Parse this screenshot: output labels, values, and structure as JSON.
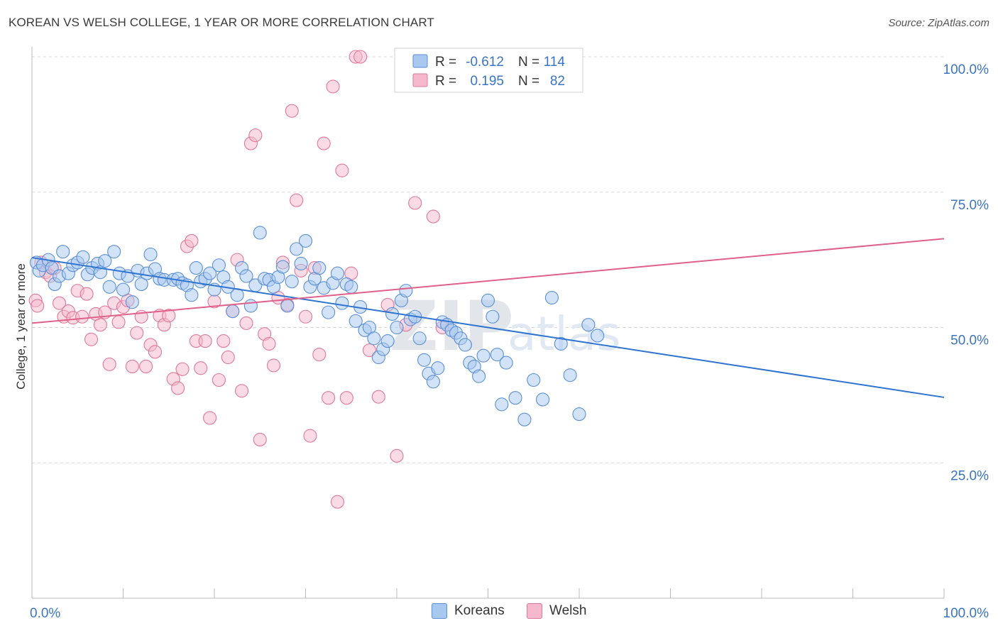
{
  "title": "KOREAN VS WELSH COLLEGE, 1 YEAR OR MORE CORRELATION CHART",
  "source": "Source: ZipAtlas.com",
  "watermark": {
    "zip": "ZIP",
    "atlas": "atlas"
  },
  "colors": {
    "koreans_fill": "#a8c8f0",
    "koreans_stroke": "#5b8fd6",
    "koreans_line": "#2e74d0",
    "welsh_fill": "#f5b8cc",
    "welsh_stroke": "#e07898",
    "welsh_line": "#e0608a",
    "value_text": "#3a74c4",
    "grid": "#d8d8d8"
  },
  "stats_legend": [
    {
      "r_label": "R =",
      "r_value": "-0.612",
      "n_label": "N =",
      "n_value": "114"
    },
    {
      "r_label": "R =",
      "r_value": "0.195",
      "n_label": "N =",
      "n_value": "82"
    }
  ],
  "chart_data": {
    "type": "scatter",
    "title": "KOREAN VS WELSH COLLEGE, 1 YEAR OR MORE CORRELATION CHART",
    "xlabel": "",
    "ylabel": "College, 1 year or more",
    "xlim": [
      0,
      100
    ],
    "ylim": [
      0,
      100
    ],
    "x_tick_labels": [
      "0.0%",
      "100.0%"
    ],
    "y_ticks": [
      25,
      50,
      75,
      100
    ],
    "y_tick_labels": [
      "25.0%",
      "50.0%",
      "75.0%",
      "100.0%"
    ],
    "grid": true,
    "legend": "bottom-center",
    "series": [
      {
        "name": "Koreans",
        "R": -0.612,
        "N": 114,
        "trend": {
          "x": [
            0,
            100
          ],
          "y": [
            62.9,
            37.1
          ]
        },
        "points": [
          [
            0.5,
            62
          ],
          [
            0.8,
            60.5
          ],
          [
            1.2,
            61.5
          ],
          [
            1.8,
            62.5
          ],
          [
            2.2,
            61
          ],
          [
            2.5,
            58
          ],
          [
            3,
            59.5
          ],
          [
            3.4,
            64
          ],
          [
            4,
            60
          ],
          [
            4.5,
            61.5
          ],
          [
            5,
            62
          ],
          [
            5.6,
            63
          ],
          [
            6.1,
            59.8
          ],
          [
            6.6,
            61
          ],
          [
            7.2,
            61.8
          ],
          [
            7.5,
            60.2
          ],
          [
            8,
            62.3
          ],
          [
            8.5,
            57.5
          ],
          [
            9,
            64
          ],
          [
            9.6,
            60
          ],
          [
            10,
            57
          ],
          [
            10.5,
            59.5
          ],
          [
            11,
            54.7
          ],
          [
            11.6,
            60.5
          ],
          [
            12,
            58
          ],
          [
            12.6,
            60
          ],
          [
            13,
            63.5
          ],
          [
            13.5,
            60.8
          ],
          [
            14,
            59
          ],
          [
            14.5,
            58.8
          ],
          [
            15.5,
            58.8
          ],
          [
            16,
            59
          ],
          [
            16.5,
            58.2
          ],
          [
            17,
            57.8
          ],
          [
            17.5,
            56
          ],
          [
            18,
            61
          ],
          [
            18.5,
            58.5
          ],
          [
            19,
            59
          ],
          [
            19.5,
            60
          ],
          [
            20,
            57
          ],
          [
            20.5,
            61.5
          ],
          [
            21,
            59.3
          ],
          [
            21.5,
            57.5
          ],
          [
            22,
            53
          ],
          [
            22.5,
            56
          ],
          [
            23,
            61
          ],
          [
            23.5,
            59.5
          ],
          [
            24,
            54
          ],
          [
            24.5,
            57.8
          ],
          [
            25,
            67.5
          ],
          [
            25.5,
            59
          ],
          [
            26,
            58.8
          ],
          [
            26.5,
            57.5
          ],
          [
            27,
            59.3
          ],
          [
            27.5,
            61.2
          ],
          [
            28,
            54
          ],
          [
            28.5,
            58.5
          ],
          [
            29,
            64.5
          ],
          [
            29.5,
            61.8
          ],
          [
            30,
            66
          ],
          [
            30.5,
            57.5
          ],
          [
            31,
            59
          ],
          [
            31.5,
            61
          ],
          [
            32,
            57.3
          ],
          [
            32.5,
            52.8
          ],
          [
            33,
            58.2
          ],
          [
            33.5,
            60
          ],
          [
            34,
            54.5
          ],
          [
            34.5,
            58
          ],
          [
            35,
            57.5
          ],
          [
            35.5,
            51.2
          ],
          [
            36,
            53.8
          ],
          [
            36.5,
            49.5
          ],
          [
            37,
            50
          ],
          [
            37.5,
            48
          ],
          [
            38,
            44.5
          ],
          [
            38.5,
            46
          ],
          [
            39,
            47.5
          ],
          [
            39.5,
            52.5
          ],
          [
            40,
            50
          ],
          [
            40.5,
            55
          ],
          [
            41,
            56.8
          ],
          [
            41.5,
            51.5
          ],
          [
            42,
            52
          ],
          [
            42.5,
            48
          ],
          [
            43,
            44
          ],
          [
            43.5,
            41.5
          ],
          [
            44,
            40
          ],
          [
            44.5,
            42.5
          ],
          [
            45,
            51
          ],
          [
            45.5,
            50.5
          ],
          [
            46,
            49.5
          ],
          [
            46.5,
            49
          ],
          [
            47,
            48
          ],
          [
            47.5,
            46.8
          ],
          [
            48,
            43.5
          ],
          [
            48.5,
            42.8
          ],
          [
            49,
            41
          ],
          [
            49.5,
            44.8
          ],
          [
            50,
            55
          ],
          [
            50.5,
            52
          ],
          [
            51,
            45
          ],
          [
            51.5,
            35.8
          ],
          [
            52,
            43.5
          ],
          [
            53,
            37
          ],
          [
            54,
            33
          ],
          [
            55,
            40.3
          ],
          [
            56,
            36.7
          ],
          [
            57,
            55.5
          ],
          [
            58,
            47
          ],
          [
            59,
            41.2
          ],
          [
            60,
            34
          ],
          [
            61,
            50.5
          ],
          [
            62,
            48.5
          ]
        ]
      },
      {
        "name": "Welsh",
        "R": 0.195,
        "N": 82,
        "trend": {
          "x": [
            0,
            100
          ],
          "y": [
            50.8,
            66.4
          ]
        },
        "points": [
          [
            0.4,
            55
          ],
          [
            0.6,
            54
          ],
          [
            1,
            62
          ],
          [
            1.5,
            60.2
          ],
          [
            2,
            59.5
          ],
          [
            2.5,
            61
          ],
          [
            3,
            54.5
          ],
          [
            3.5,
            52
          ],
          [
            4,
            53
          ],
          [
            4.5,
            51.8
          ],
          [
            5,
            56.8
          ],
          [
            5.5,
            52
          ],
          [
            6,
            56.2
          ],
          [
            6.5,
            47.8
          ],
          [
            7,
            52.5
          ],
          [
            7.5,
            50.5
          ],
          [
            8,
            52.8
          ],
          [
            8.5,
            43.2
          ],
          [
            9,
            54.5
          ],
          [
            9.5,
            51
          ],
          [
            10,
            53.8
          ],
          [
            10.5,
            55
          ],
          [
            11,
            42.8
          ],
          [
            11.5,
            49
          ],
          [
            12,
            52
          ],
          [
            12.5,
            42.8
          ],
          [
            13,
            46.8
          ],
          [
            13.5,
            45.5
          ],
          [
            14,
            52.2
          ],
          [
            14.5,
            50.5
          ],
          [
            15,
            52.2
          ],
          [
            15.5,
            40.5
          ],
          [
            16,
            38.8
          ],
          [
            16.5,
            42.3
          ],
          [
            17,
            65
          ],
          [
            17.5,
            66
          ],
          [
            18,
            47.5
          ],
          [
            18.5,
            42.5
          ],
          [
            19,
            47.5
          ],
          [
            19.5,
            33.3
          ],
          [
            20,
            54.8
          ],
          [
            20.5,
            40.3
          ],
          [
            21,
            47.5
          ],
          [
            21.5,
            44.5
          ],
          [
            22,
            53
          ],
          [
            22.5,
            62.5
          ],
          [
            23,
            38.3
          ],
          [
            23.5,
            50.8
          ],
          [
            24,
            84
          ],
          [
            24.5,
            85.5
          ],
          [
            25,
            29.3
          ],
          [
            25.5,
            48.8
          ],
          [
            26,
            47
          ],
          [
            26.5,
            43
          ],
          [
            27,
            55.5
          ],
          [
            27.5,
            62
          ],
          [
            28,
            54.2
          ],
          [
            28.5,
            90
          ],
          [
            29,
            73.5
          ],
          [
            29.5,
            60.5
          ],
          [
            30,
            52
          ],
          [
            30.5,
            30
          ],
          [
            31,
            61
          ],
          [
            31.5,
            45
          ],
          [
            32,
            84
          ],
          [
            32.5,
            37
          ],
          [
            33,
            94.5
          ],
          [
            33.5,
            17.8
          ],
          [
            34,
            79
          ],
          [
            34.5,
            37
          ],
          [
            35,
            60
          ],
          [
            35.5,
            100
          ],
          [
            36,
            100
          ],
          [
            37,
            45.8
          ],
          [
            38,
            37.2
          ],
          [
            39,
            54.2
          ],
          [
            40,
            26.3
          ],
          [
            41,
            50.5
          ],
          [
            42,
            73
          ],
          [
            43,
            95.5
          ],
          [
            44,
            70.5
          ],
          [
            45,
            50
          ]
        ]
      }
    ]
  },
  "bottom_legend": [
    {
      "label": "Koreans"
    },
    {
      "label": "Welsh"
    }
  ]
}
